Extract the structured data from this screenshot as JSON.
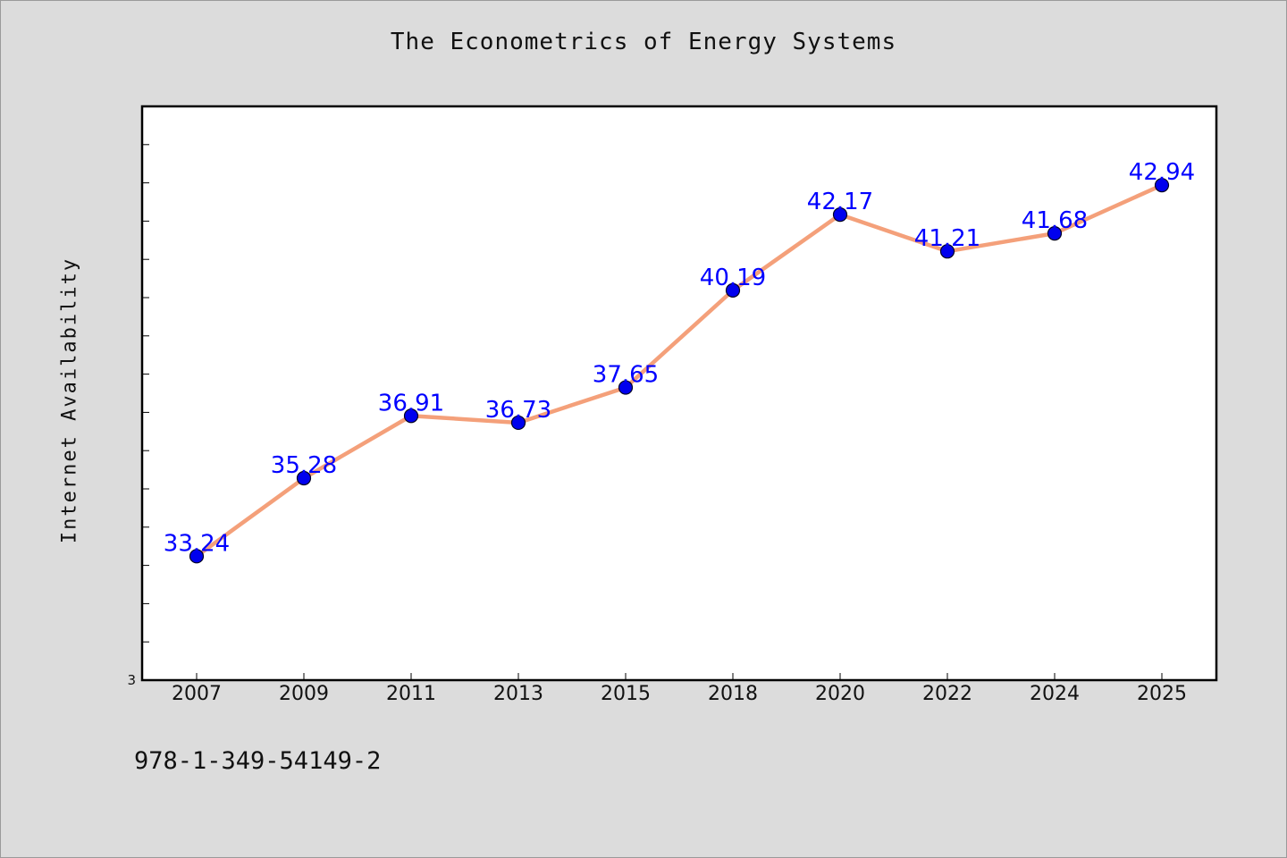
{
  "chart_data": {
    "type": "line",
    "title": "The Econometrics of Energy Systems",
    "xlabel": "",
    "ylabel": "Internet Availability",
    "categories": [
      "2007",
      "2009",
      "2011",
      "2013",
      "2015",
      "2018",
      "2020",
      "2022",
      "2024",
      "2025"
    ],
    "series": [
      {
        "values": [
          33.24,
          35.28,
          36.91,
          36.73,
          37.65,
          40.19,
          42.17,
          41.21,
          41.68,
          42.94
        ]
      }
    ],
    "data_labels": [
      "33.24",
      "35.28",
      "36.91",
      "36.73",
      "37.65",
      "40.19",
      "42.17",
      "41.21",
      "41.68",
      "42.94"
    ],
    "ylim": [
      30,
      45
    ],
    "y_tick_label": "3",
    "grid": false,
    "legend": "none",
    "line_color": "#f4a07a",
    "marker_color": "#0000ee",
    "label_color": "#0000ff"
  },
  "footer": {
    "isbn": "978-1-349-54149-2"
  }
}
